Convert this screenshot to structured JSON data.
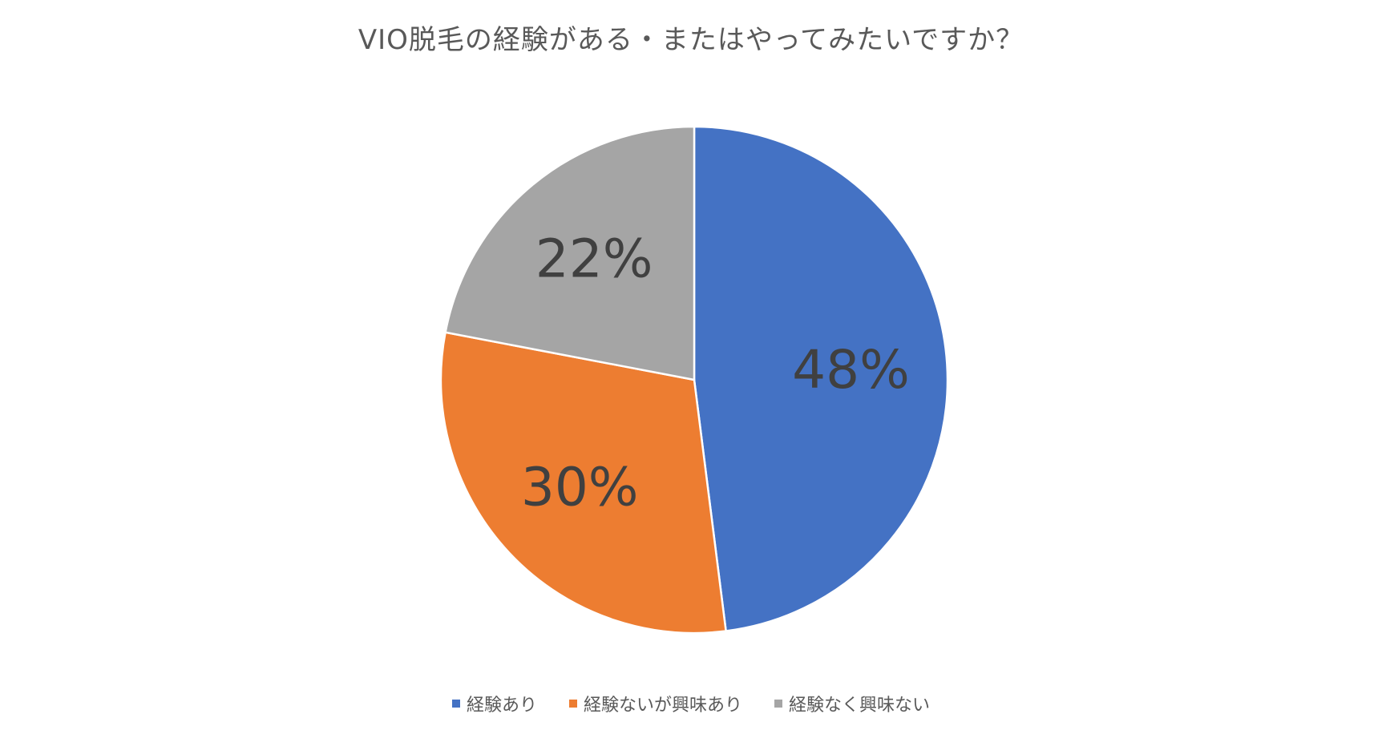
{
  "chart_data": {
    "type": "pie",
    "title": "VIO脱毛の経験がある・またはやってみたいですか？",
    "categories": [
      "経験あり",
      "経験ないが興味あり",
      "経験なく興味ない"
    ],
    "values": [
      48,
      30,
      22
    ],
    "data_labels": [
      "48%",
      "30%",
      "22%"
    ],
    "colors": [
      "#4472C4",
      "#ED7D31",
      "#A5A5A5"
    ],
    "legend_position": "bottom"
  }
}
